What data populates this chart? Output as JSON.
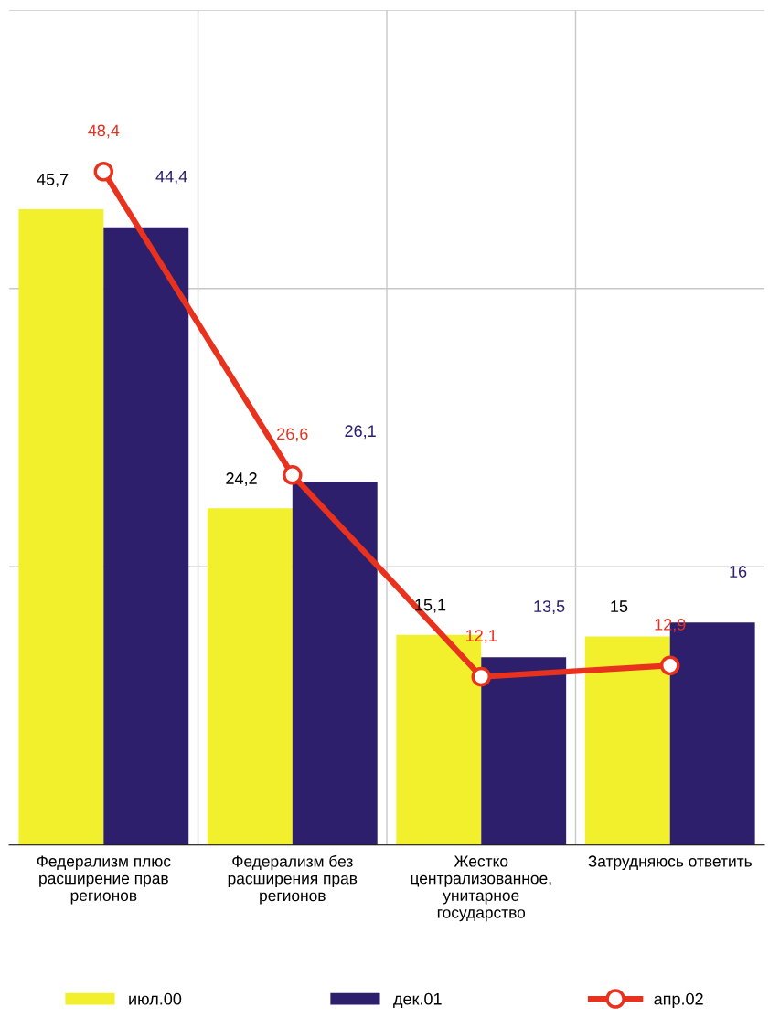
{
  "chart_data": {
    "type": "bar",
    "categories": [
      "Федерализм плюс\nрасширение прав\nрегионов",
      "Федерализм без\nрасширения прав\nрегионов",
      "Жестко\nцентрализованное,\nунитарное\nгосударство",
      "Затрудняюсь ответить"
    ],
    "series": [
      {
        "name": "июл.00",
        "color": "#f2f02c",
        "values": [
          45.7,
          24.2,
          15.1,
          15
        ],
        "value_labels": [
          "45,7",
          "24,2",
          "15,1",
          "15"
        ]
      },
      {
        "name": "дек.01",
        "color": "#2d1f6b",
        "values": [
          44.4,
          26.1,
          13.5,
          16
        ],
        "value_labels": [
          "44,4",
          "26,1",
          "13,5",
          "16"
        ]
      },
      {
        "name": "апр.02",
        "type": "line",
        "color": "#e8321e",
        "marker": "circle",
        "values": [
          48.4,
          26.6,
          12.1,
          12.9
        ],
        "value_labels": [
          "48,4",
          "26,6",
          "12,1",
          "12,9"
        ]
      }
    ],
    "ylim": [
      0,
      60
    ],
    "yticks": [
      {
        "value": 0,
        "label": null
      },
      {
        "value": 20,
        "label": null
      },
      {
        "value": 40,
        "label": null
      },
      {
        "value": 60,
        "label": null
      }
    ],
    "tick_labels": "x",
    "grid": true,
    "legend": "bottom"
  }
}
